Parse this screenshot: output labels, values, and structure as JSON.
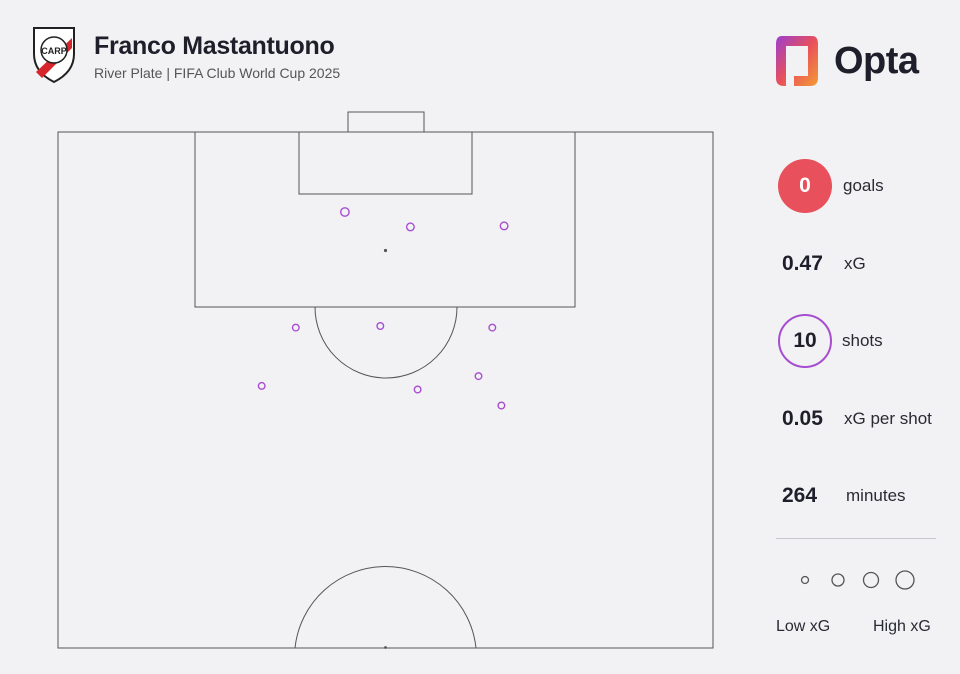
{
  "header": {
    "title": "Franco Mastantuono",
    "subtitle": "River Plate | FIFA Club World Cup 2025",
    "crest_icon": "river-plate-crest-icon",
    "crest_text": "CARP"
  },
  "brand": {
    "name": "Opta",
    "logo_icon": "opta-logo-icon"
  },
  "stats": {
    "goals": {
      "value": "0",
      "label": "goals"
    },
    "xg": {
      "value": "0.47",
      "label": "xG"
    },
    "shots": {
      "value": "10",
      "label": "shots"
    },
    "xg_per_shot": {
      "value": "0.05",
      "label": "xG per shot"
    },
    "minutes": {
      "value": "264",
      "label": "minutes"
    }
  },
  "legend": {
    "low": "Low xG",
    "high": "High xG"
  },
  "colors": {
    "goal": "#e8505b",
    "shot": "#a64ed0",
    "pitch_line": "#555555",
    "background": "#f2f2f4"
  },
  "chart_data": {
    "type": "scatter",
    "description_note": "",
    "x_axis": "pitch width (0 = left touchline, 100 = right touchline)",
    "y_axis": "distance from goal line (0 = goal line, 100 = halfway line)",
    "xlim": [
      0,
      100
    ],
    "ylim": [
      0,
      100
    ],
    "series": [
      {
        "name": "",
        "outcome": "no goal",
        "points": [
          {
            "x": 43.8,
            "y": 15.5,
            "xg": 0.06
          },
          {
            "x": 53.8,
            "y": 18.4,
            "xg": 0.05
          },
          {
            "x": 68.1,
            "y": 18.2,
            "xg": 0.05
          },
          {
            "x": 36.3,
            "y": 37.9,
            "xg": 0.04
          },
          {
            "x": 49.2,
            "y": 37.6,
            "xg": 0.04
          },
          {
            "x": 66.3,
            "y": 37.9,
            "xg": 0.04
          },
          {
            "x": 31.1,
            "y": 49.2,
            "xg": 0.04
          },
          {
            "x": 54.9,
            "y": 49.9,
            "xg": 0.04
          },
          {
            "x": 64.2,
            "y": 47.3,
            "xg": 0.04
          },
          {
            "x": 67.7,
            "y": 53.0,
            "xg": 0.04
          }
        ]
      }
    ],
    "legend_sizes": [
      "low",
      "",
      "",
      "high"
    ]
  }
}
